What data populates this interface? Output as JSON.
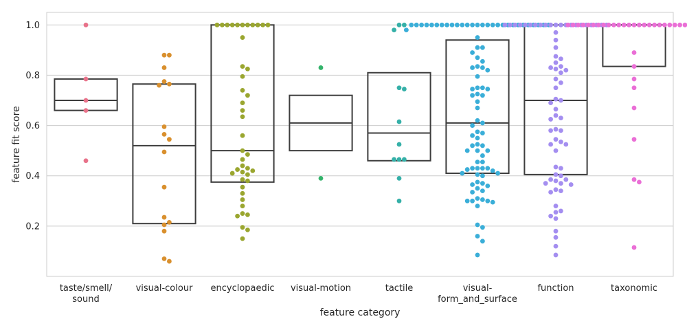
{
  "chart_data": {
    "type": "box",
    "xlabel": "feature category",
    "ylabel": "feature fit score",
    "ylim": [
      0,
      1.05
    ],
    "yticks": [
      "0.2",
      "0.4",
      "0.6",
      "0.8",
      "1.0"
    ],
    "grid": true,
    "box_fill": "none",
    "box_stroke": "#3d3d3d",
    "categories": [
      {
        "label": [
          "taste/smell/",
          "sound"
        ],
        "color": "#e8728a",
        "box": {
          "q1": 0.66,
          "median": 0.7,
          "q3": 0.785
        },
        "points": [
          1.0,
          0.785,
          0.7,
          0.66,
          0.46
        ]
      },
      {
        "label": [
          "visual-colour"
        ],
        "color": "#d9902e",
        "box": {
          "q1": 0.21,
          "median": 0.52,
          "q3": 0.765
        },
        "points": [
          0.88,
          0.88,
          0.83,
          0.775,
          0.765,
          0.76,
          0.595,
          0.565,
          0.545,
          0.495,
          0.355,
          0.235,
          0.215,
          0.205,
          0.18,
          0.07,
          0.06
        ]
      },
      {
        "label": [
          "encyclopaedic"
        ],
        "color": "#9aa62f",
        "box": {
          "q1": 0.375,
          "median": 0.5,
          "q3": 1.0
        },
        "points": [
          1.0,
          1.0,
          1.0,
          1.0,
          1.0,
          1.0,
          1.0,
          1.0,
          1.0,
          1.0,
          1.0,
          0.95,
          0.835,
          0.825,
          0.795,
          0.74,
          0.72,
          0.69,
          0.66,
          0.635,
          0.56,
          0.5,
          0.485,
          0.465,
          0.44,
          0.43,
          0.425,
          0.42,
          0.415,
          0.41,
          0.405,
          0.385,
          0.38,
          0.355,
          0.33,
          0.305,
          0.28,
          0.25,
          0.245,
          0.24,
          0.195,
          0.185,
          0.15
        ]
      },
      {
        "label": [
          "visual-motion"
        ],
        "color": "#34b36b",
        "box": {
          "q1": 0.5,
          "median": 0.61,
          "q3": 0.72
        },
        "points": [
          0.83,
          0.39
        ]
      },
      {
        "label": [
          "tactile"
        ],
        "color": "#35b0a8",
        "box": {
          "q1": 0.46,
          "median": 0.57,
          "q3": 0.81
        },
        "points": [
          1.0,
          1.0,
          0.98,
          0.75,
          0.745,
          0.615,
          0.525,
          0.465,
          0.465,
          0.465,
          0.39,
          0.3
        ]
      },
      {
        "label": [
          "visual-",
          "form_and_surface"
        ],
        "color": "#3aaed8",
        "box": {
          "q1": 0.41,
          "median": 0.61,
          "q3": 0.94
        },
        "points": [
          1.0,
          1.0,
          1.0,
          1.0,
          1.0,
          1.0,
          1.0,
          1.0,
          1.0,
          1.0,
          1.0,
          1.0,
          1.0,
          1.0,
          1.0,
          1.0,
          1.0,
          1.0,
          1.0,
          1.0,
          1.0,
          1.0,
          1.0,
          1.0,
          1.0,
          1.0,
          1.0,
          1.0,
          0.98,
          0.95,
          0.91,
          0.91,
          0.89,
          0.87,
          0.855,
          0.835,
          0.83,
          0.83,
          0.82,
          0.795,
          0.75,
          0.75,
          0.745,
          0.745,
          0.725,
          0.72,
          0.72,
          0.695,
          0.67,
          0.62,
          0.61,
          0.6,
          0.575,
          0.57,
          0.56,
          0.55,
          0.525,
          0.52,
          0.52,
          0.5,
          0.5,
          0.5,
          0.48,
          0.455,
          0.455,
          0.43,
          0.43,
          0.43,
          0.43,
          0.425,
          0.42,
          0.41,
          0.41,
          0.405,
          0.4,
          0.375,
          0.37,
          0.365,
          0.36,
          0.35,
          0.34,
          0.335,
          0.31,
          0.305,
          0.3,
          0.3,
          0.3,
          0.295,
          0.28,
          0.205,
          0.195,
          0.16,
          0.14,
          0.085
        ]
      },
      {
        "label": [
          "function"
        ],
        "color": "#a48ef0",
        "box": {
          "q1": 0.405,
          "median": 0.7,
          "q3": 1.0
        },
        "points": [
          1.0,
          1.0,
          1.0,
          1.0,
          1.0,
          1.0,
          1.0,
          1.0,
          1.0,
          1.0,
          1.0,
          1.0,
          1.0,
          1.0,
          1.0,
          1.0,
          1.0,
          1.0,
          1.0,
          1.0,
          1.0,
          0.97,
          0.94,
          0.91,
          0.875,
          0.865,
          0.85,
          0.835,
          0.83,
          0.825,
          0.82,
          0.81,
          0.785,
          0.77,
          0.75,
          0.705,
          0.7,
          0.69,
          0.665,
          0.64,
          0.63,
          0.625,
          0.585,
          0.58,
          0.58,
          0.545,
          0.535,
          0.525,
          0.525,
          0.5,
          0.435,
          0.43,
          0.405,
          0.4,
          0.385,
          0.385,
          0.38,
          0.37,
          0.37,
          0.365,
          0.345,
          0.34,
          0.335,
          0.28,
          0.26,
          0.255,
          0.24,
          0.23,
          0.18,
          0.155,
          0.12,
          0.085
        ]
      },
      {
        "label": [
          "taxonomic"
        ],
        "color": "#ea6fd6",
        "box": {
          "q1": 0.835,
          "median": 1.0,
          "q3": 1.0
        },
        "points": [
          1.0,
          1.0,
          1.0,
          1.0,
          1.0,
          1.0,
          1.0,
          1.0,
          1.0,
          1.0,
          1.0,
          1.0,
          1.0,
          1.0,
          1.0,
          1.0,
          1.0,
          1.0,
          1.0,
          1.0,
          1.0,
          1.0,
          1.0,
          1.0,
          1.0,
          1.0,
          1.0,
          0.89,
          0.835,
          0.785,
          0.75,
          0.67,
          0.545,
          0.385,
          0.375,
          0.115
        ]
      }
    ]
  }
}
